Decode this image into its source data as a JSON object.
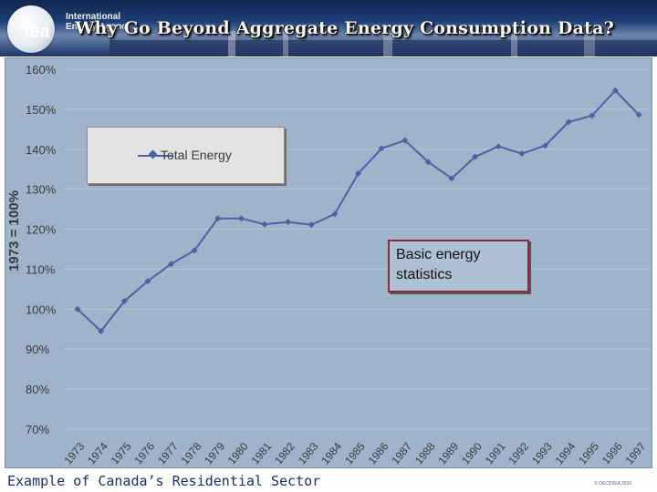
{
  "header": {
    "logo_text": "iea",
    "logo_wordmark": "International Energy Agency",
    "title": "Why Go Beyond Aggregate Energy Consumption Data?"
  },
  "chart_data": {
    "type": "line",
    "title": "",
    "xlabel": "",
    "ylabel": "1973 = 100%",
    "categories": [
      "1973",
      "1974",
      "1975",
      "1976",
      "1977",
      "1978",
      "1979",
      "1980",
      "1981",
      "1982",
      "1983",
      "1984",
      "1985",
      "1986",
      "1987",
      "1988",
      "1989",
      "1990",
      "1991",
      "1992",
      "1993",
      "1994",
      "1995",
      "1996",
      "1997"
    ],
    "series": [
      {
        "name": "Total Energy",
        "values": [
          100,
          94.5,
          102,
          107,
          111.3,
          114.7,
          122.7,
          122.7,
          121.2,
          121.8,
          121.1,
          123.8,
          133.9,
          140.2,
          142.2,
          136.8,
          132.7,
          138.1,
          140.7,
          138.9,
          140.9,
          146.8,
          148.4,
          154.7,
          148.6
        ]
      }
    ],
    "ylim": [
      70,
      160
    ],
    "yticks": [
      70,
      80,
      90,
      100,
      110,
      120,
      130,
      140,
      150,
      160
    ],
    "ytick_labels": [
      "70%",
      "80%",
      "90%",
      "100%",
      "110%",
      "120%",
      "130%",
      "140%",
      "150%",
      "160%"
    ],
    "grid": true,
    "legend_position": "top-left",
    "colors": {
      "line": "#4a63a4",
      "plot_background": "#9fb4ca",
      "grid": "#b6c6d6"
    }
  },
  "callout": {
    "text": "Basic energy\nstatistics"
  },
  "footer": {
    "caption": "Example of Canada’s Residential Sector",
    "copyright": "© OECD/IEA 2010"
  }
}
